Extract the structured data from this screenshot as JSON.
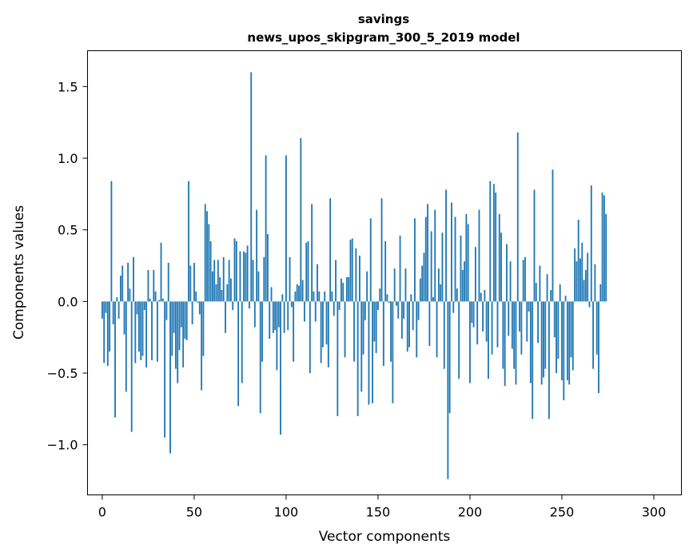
{
  "chart_data": {
    "type": "bar",
    "title": "savings",
    "subtitle": "news_upos_skipgram_300_5_2019 model",
    "xlabel": "Vector components",
    "ylabel": "Components values",
    "xlim": [
      -8,
      315
    ],
    "ylim": [
      -1.35,
      1.75
    ],
    "xticks": [
      0,
      50,
      100,
      150,
      200,
      250,
      300
    ],
    "yticks": [
      -1.0,
      -0.5,
      0.0,
      0.5,
      1.0,
      1.5
    ],
    "xtick_labels": [
      "0",
      "50",
      "100",
      "150",
      "200",
      "250",
      "300"
    ],
    "ytick_labels": [
      "−1.0",
      "−0.5",
      "0.0",
      "0.5",
      "1.0",
      "1.5"
    ],
    "bar_color": "#1f77b4",
    "values": [
      -0.12,
      -0.43,
      -0.08,
      -0.45,
      -0.35,
      0.84,
      -0.16,
      -0.81,
      0.03,
      -0.12,
      0.18,
      0.25,
      -0.23,
      -0.63,
      0.27,
      0.09,
      -0.91,
      0.31,
      -0.43,
      -0.09,
      -0.35,
      -0.41,
      -0.38,
      -0.06,
      -0.46,
      0.22,
      0.02,
      -0.41,
      0.22,
      0.07,
      -0.42,
      0.01,
      0.41,
      0.02,
      -0.95,
      -0.13,
      0.27,
      -1.06,
      -0.38,
      -0.22,
      -0.47,
      -0.57,
      -0.34,
      -0.18,
      -0.46,
      -0.26,
      -0.27,
      0.84,
      0.25,
      -0.16,
      0.27,
      0.07,
      -0.01,
      -0.09,
      -0.62,
      -0.38,
      0.68,
      0.63,
      0.54,
      0.42,
      0.21,
      0.29,
      0.12,
      0.29,
      0.17,
      0.08,
      0.31,
      -0.22,
      0.12,
      0.29,
      0.16,
      -0.06,
      0.44,
      0.42,
      -0.73,
      0.35,
      -0.57,
      0.35,
      0.34,
      0.39,
      -0.05,
      1.6,
      0.29,
      -0.18,
      0.64,
      0.21,
      -0.78,
      -0.42,
      0.31,
      1.02,
      0.47,
      -0.26,
      0.1,
      -0.22,
      -0.2,
      -0.48,
      -0.18,
      -0.93,
      0.05,
      -0.22,
      1.02,
      -0.2,
      0.31,
      -0.04,
      -0.42,
      0.07,
      0.12,
      0.11,
      1.14,
      0.15,
      -0.14,
      0.41,
      0.42,
      -0.5,
      0.68,
      0.07,
      -0.14,
      0.26,
      0.07,
      -0.43,
      -0.32,
      0.07,
      -0.3,
      -0.46,
      0.72,
      0.07,
      -0.1,
      0.29,
      -0.8,
      -0.06,
      0.16,
      0.13,
      -0.39,
      0.17,
      0.17,
      0.43,
      0.44,
      -0.42,
      0.37,
      -0.8,
      0.32,
      -0.63,
      -0.37,
      -0.13,
      0.21,
      -0.72,
      0.58,
      -0.71,
      -0.28,
      -0.36,
      -0.06,
      0.09,
      0.72,
      -0.45,
      0.42,
      0.05,
      -0.01,
      -0.42,
      -0.71,
      0.23,
      -0.03,
      -0.12,
      0.46,
      -0.26,
      -0.12,
      0.23,
      -0.35,
      -0.32,
      0.05,
      -0.2,
      0.58,
      -0.39,
      -0.13,
      0.16,
      0.25,
      0.34,
      0.59,
      0.68,
      -0.31,
      0.49,
      0.03,
      0.64,
      -0.39,
      0.23,
      0.12,
      0.48,
      -0.47,
      0.78,
      -1.24,
      -0.78,
      0.69,
      -0.08,
      0.59,
      0.09,
      -0.54,
      0.46,
      0.22,
      0.28,
      0.61,
      0.54,
      -0.57,
      -0.15,
      -0.18,
      0.38,
      -0.3,
      0.64,
      0.06,
      -0.21,
      0.08,
      -0.28,
      -0.54,
      0.84,
      -0.37,
      0.82,
      0.76,
      -0.32,
      0.61,
      0.48,
      -0.47,
      -0.59,
      0.4,
      -0.24,
      0.28,
      -0.33,
      -0.47,
      -0.58,
      1.18,
      -0.21,
      -0.37,
      0.29,
      0.31,
      -0.28,
      -0.07,
      -0.57,
      -0.82,
      0.78,
      0.13,
      -0.29,
      0.25,
      -0.58,
      -0.53,
      -0.47,
      0.19,
      -0.82,
      0.08,
      0.92,
      -0.25,
      -0.5,
      -0.4,
      0.12,
      -0.55,
      -0.69,
      0.04,
      -0.55,
      -0.58,
      -0.39,
      -0.48,
      0.37,
      0.28,
      0.57,
      0.3,
      0.41,
      0.15,
      0.22,
      0.34,
      -0.04,
      0.81,
      -0.47,
      0.26,
      -0.37,
      -0.64,
      0.12,
      0.76,
      0.74,
      0.61
    ],
    "annotations": []
  }
}
